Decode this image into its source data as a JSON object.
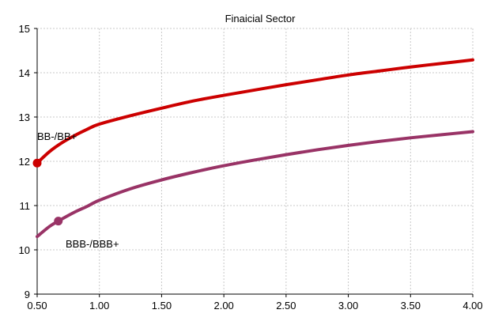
{
  "chart_data": {
    "type": "line",
    "title": "Finaicial Sector",
    "xlabel": "",
    "ylabel": "",
    "xlim": [
      0.5,
      4.0
    ],
    "ylim": [
      9,
      15
    ],
    "grid": true,
    "x_ticks": [
      "0.50",
      "1.00",
      "1.50",
      "2.00",
      "2.50",
      "3.00",
      "3.50",
      "4.00"
    ],
    "y_ticks": [
      "9",
      "10",
      "11",
      "12",
      "13",
      "14",
      "15"
    ],
    "series": [
      {
        "name": "BB-/BB+",
        "color": "#cc0000",
        "x": [
          0.5,
          0.6,
          0.7,
          0.8,
          0.9,
          1.0,
          1.25,
          1.5,
          1.75,
          2.0,
          2.25,
          2.5,
          2.75,
          3.0,
          3.25,
          3.5,
          3.75,
          4.0
        ],
        "y": [
          11.96,
          12.22,
          12.42,
          12.58,
          12.72,
          12.84,
          13.03,
          13.2,
          13.36,
          13.49,
          13.61,
          13.73,
          13.84,
          13.95,
          14.04,
          14.13,
          14.21,
          14.29
        ],
        "marker": {
          "x": 0.5,
          "y": 11.96
        }
      },
      {
        "name": "BBB-/BBB+",
        "color": "#993366",
        "x": [
          0.5,
          0.6,
          0.67,
          0.8,
          0.9,
          1.0,
          1.25,
          1.5,
          1.75,
          2.0,
          2.25,
          2.5,
          2.75,
          3.0,
          3.25,
          3.5,
          3.75,
          4.0
        ],
        "y": [
          10.3,
          10.53,
          10.65,
          10.85,
          10.98,
          11.12,
          11.38,
          11.58,
          11.75,
          11.9,
          12.03,
          12.15,
          12.26,
          12.36,
          12.45,
          12.53,
          12.6,
          12.67
        ],
        "marker": {
          "x": 0.67,
          "y": 10.65
        }
      }
    ]
  }
}
